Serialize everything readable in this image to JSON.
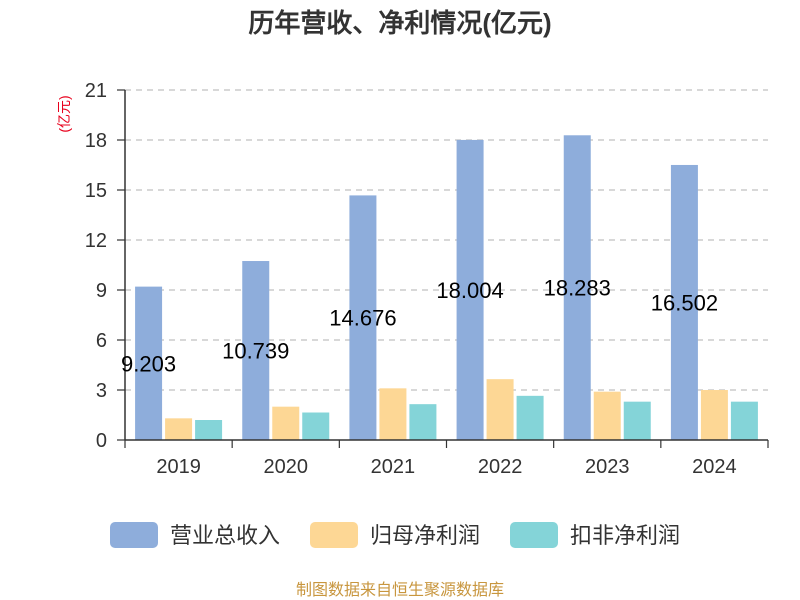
{
  "footer": "制图数据来自恒生聚源数据库",
  "colors": {
    "title": "#333333",
    "axis": "#333333",
    "grid": "#cccccc",
    "data_label": "#000000",
    "ylabel": "#e8001c",
    "footer": "#c8963e"
  },
  "chart_data": {
    "type": "bar",
    "title": "历年营收、净利情况(亿元)",
    "xlabel": "",
    "ylabel": "(亿元)",
    "categories": [
      "2019",
      "2020",
      "2021",
      "2022",
      "2023",
      "2024"
    ],
    "series": [
      {
        "name": "营业总收入",
        "values": [
          9.203,
          10.739,
          14.676,
          18.004,
          18.283,
          16.502
        ],
        "color": "#8eaddb",
        "data_labels": true
      },
      {
        "name": "归母净利润",
        "values": [
          1.3,
          2.0,
          3.1,
          3.65,
          2.9,
          3.0
        ],
        "color": "#fdd795",
        "data_labels": false
      },
      {
        "name": "扣非净利润",
        "values": [
          1.2,
          1.65,
          2.15,
          2.65,
          2.3,
          2.3
        ],
        "color": "#84d4d8",
        "data_labels": false
      }
    ],
    "ylim": [
      0,
      21
    ],
    "yticks": [
      0,
      3,
      6,
      9,
      12,
      15,
      18,
      21
    ],
    "grid": true,
    "grid_style": "dashed",
    "legend": "bottom"
  }
}
